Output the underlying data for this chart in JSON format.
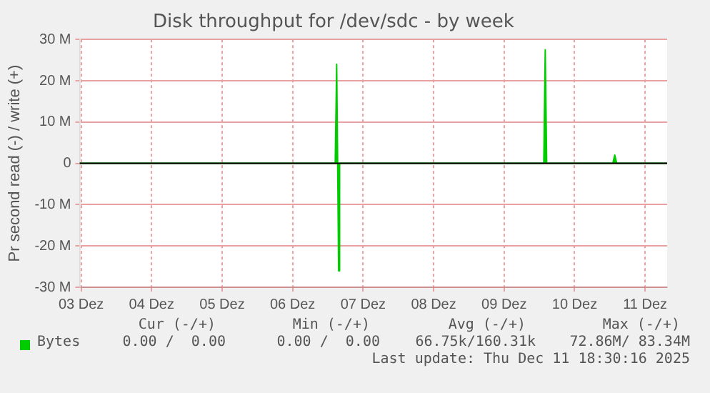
{
  "chart_data": {
    "type": "area",
    "title": "Disk throughput for /dev/sdc - by week",
    "ylabel": "Pr second read (-) / write (+)",
    "xlim": [
      "--12-03T11:30",
      "--12-11T19:30"
    ],
    "xticks": [
      {
        "value": "--12-03T12:00",
        "label": "03 Dez"
      },
      {
        "value": "--12-04T12:00",
        "label": "04 Dez"
      },
      {
        "value": "--12-05T12:00",
        "label": "05 Dez"
      },
      {
        "value": "--12-06T12:00",
        "label": "06 Dez"
      },
      {
        "value": "--12-07T12:00",
        "label": "07 Dez"
      },
      {
        "value": "--12-08T12:00",
        "label": "08 Dez"
      },
      {
        "value": "--12-09T12:00",
        "label": "09 Dez"
      },
      {
        "value": "--12-10T12:00",
        "label": "10 Dez"
      },
      {
        "value": "--12-11T12:00",
        "label": "11 Dez"
      }
    ],
    "ylim": [
      -30000000,
      30000000
    ],
    "yticks": [
      {
        "value": -30000000,
        "label": "-30 M"
      },
      {
        "value": -20000000,
        "label": "-20 M"
      },
      {
        "value": -10000000,
        "label": "-10 M"
      },
      0,
      {
        "value": 10000000,
        "label": "10 M"
      },
      {
        "value": 20000000,
        "label": "20 M"
      },
      {
        "value": 30000000,
        "label": "30 M"
      }
    ],
    "grid": true,
    "legend": "bottom",
    "series": [
      {
        "name": "Bytes",
        "color": "#00cc00",
        "x": [
          "--12-03T11:30",
          "--12-07T02:30",
          "--12-07T03:00",
          "--12-07T03:20",
          "--12-07T03:40",
          "--12-07T04:00",
          "--12-10T01:30",
          "--12-10T02:00",
          "--12-10T02:30",
          "--12-11T01:00",
          "--12-11T01:40",
          "--12-11T02:20",
          "--12-11T19:30"
        ],
        "values": [
          0,
          0,
          24000000,
          0,
          -26000000,
          0,
          0,
          27500000,
          0,
          0,
          2000000,
          0,
          0
        ]
      }
    ],
    "annotations": [
      "Cur (-/+)",
      "Min (-/+)",
      "Avg (-/+)",
      "Max (-/+)",
      "0.00 /  0.00",
      "0.00 /  0.00",
      "66.75k/160.31k",
      "72.86M/ 83.34M",
      "Last update: Thu Dec 11 18:30:16 2025"
    ]
  }
}
